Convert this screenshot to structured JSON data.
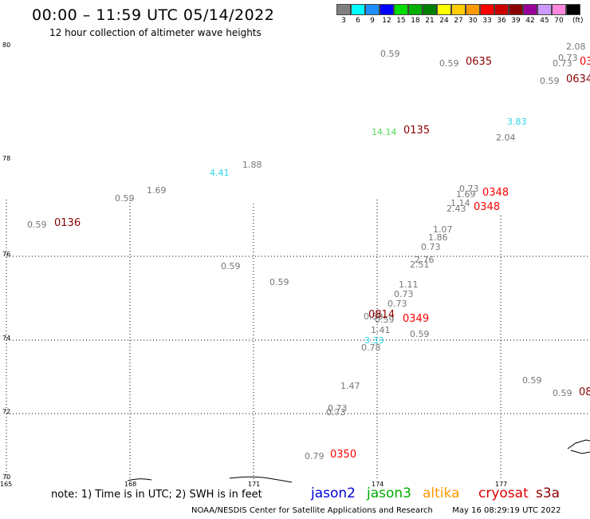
{
  "header": {
    "title": "00:00 – 11:59 UTC 05/14/2022",
    "subtitle": "12 hour collection of altimeter wave heights"
  },
  "legend": {
    "unit": "(ft)",
    "items": [
      {
        "label": "3",
        "color": "#808080"
      },
      {
        "label": "6",
        "color": "#00ffff"
      },
      {
        "label": "9",
        "color": "#1e90ff"
      },
      {
        "label": "12",
        "color": "#0000ff"
      },
      {
        "label": "15",
        "color": "#00dd00"
      },
      {
        "label": "18",
        "color": "#00b000"
      },
      {
        "label": "21",
        "color": "#008000"
      },
      {
        "label": "24",
        "color": "#ffff00"
      },
      {
        "label": "27",
        "color": "#ffcc00"
      },
      {
        "label": "30",
        "color": "#ff9900"
      },
      {
        "label": "33",
        "color": "#ff0000"
      },
      {
        "label": "36",
        "color": "#cc0000"
      },
      {
        "label": "39",
        "color": "#8b0000"
      },
      {
        "label": "42",
        "color": "#990099"
      },
      {
        "label": "45",
        "color": "#cc99ff"
      },
      {
        "label": "70",
        "color": "#ff88dd"
      },
      {
        "label": "",
        "color": "#000000"
      }
    ]
  },
  "axes": {
    "lat": [
      "80",
      "78",
      "76",
      "74",
      "72",
      "70"
    ],
    "lon": [
      "165",
      "168",
      "171",
      "174",
      "177"
    ]
  },
  "observations": [
    {
      "text": "0.59",
      "type": "val"
    },
    {
      "text": "0.59",
      "type": "val"
    },
    {
      "text": "0635",
      "type": "time"
    },
    {
      "text": "2.08",
      "type": "val"
    },
    {
      "text": "0.73",
      "type": "val"
    },
    {
      "text": "0.73",
      "type": "val"
    },
    {
      "text": "03",
      "type": "time-red"
    },
    {
      "text": "0.59",
      "type": "val"
    },
    {
      "text": "0634",
      "type": "time"
    },
    {
      "text": "14.14",
      "type": "green"
    },
    {
      "text": "0135",
      "type": "time"
    },
    {
      "text": "3.83",
      "type": "cyan"
    },
    {
      "text": "2.04",
      "type": "val"
    },
    {
      "text": "4.41",
      "type": "cyan"
    },
    {
      "text": "1.88",
      "type": "val"
    },
    {
      "text": "1.69",
      "type": "val"
    },
    {
      "text": "0.59",
      "type": "val"
    },
    {
      "text": "0.59",
      "type": "val"
    },
    {
      "text": "0136",
      "type": "time"
    },
    {
      "text": "0.73",
      "type": "val"
    },
    {
      "text": "1.69",
      "type": "val"
    },
    {
      "text": "0348",
      "type": "time-red"
    },
    {
      "text": "1.14",
      "type": "val"
    },
    {
      "text": "2.43",
      "type": "val"
    },
    {
      "text": "0348",
      "type": "time-red"
    },
    {
      "text": "1.07",
      "type": "val"
    },
    {
      "text": "1.86",
      "type": "val"
    },
    {
      "text": "0.73",
      "type": "val"
    },
    {
      "text": "2.76",
      "type": "val"
    },
    {
      "text": "2.51",
      "type": "val"
    },
    {
      "text": "0.59",
      "type": "val"
    },
    {
      "text": "0.59",
      "type": "val"
    },
    {
      "text": "1.11",
      "type": "val"
    },
    {
      "text": "0.73",
      "type": "val"
    },
    {
      "text": "0.73",
      "type": "val"
    },
    {
      "text": "0.59",
      "type": "val"
    },
    {
      "text": "0.59",
      "type": "val"
    },
    {
      "text": "0814",
      "type": "time"
    },
    {
      "text": "0349",
      "type": "time-red"
    },
    {
      "text": "1.41",
      "type": "val"
    },
    {
      "text": "3.33",
      "type": "cyan"
    },
    {
      "text": "0.78",
      "type": "val"
    },
    {
      "text": "0.59",
      "type": "val"
    },
    {
      "text": "0.59",
      "type": "val"
    },
    {
      "text": "0.59",
      "type": "val"
    },
    {
      "text": "08",
      "type": "time"
    },
    {
      "text": "1.47",
      "type": "val"
    },
    {
      "text": "0.73",
      "type": "val"
    },
    {
      "text": "0.73",
      "type": "val"
    },
    {
      "text": "0.79",
      "type": "val"
    },
    {
      "text": "0350",
      "type": "time-red"
    }
  ],
  "footer": {
    "note": "note:  1) Time is in UTC;  2) SWH is in feet",
    "satellites": [
      {
        "name": "jason2",
        "color": "#0000dd"
      },
      {
        "name": "jason3",
        "color": "#00aa00"
      },
      {
        "name": "altika",
        "color": "#ff9900"
      },
      {
        "name": "cryosat",
        "color": "#dd0000"
      },
      {
        "name": "s3a",
        "color": "#8b0000"
      }
    ],
    "credit": "NOAA/NESDIS Center for Satellite Applications and Research",
    "timestamp": "May 16 08:29:19 UTC 2022"
  }
}
